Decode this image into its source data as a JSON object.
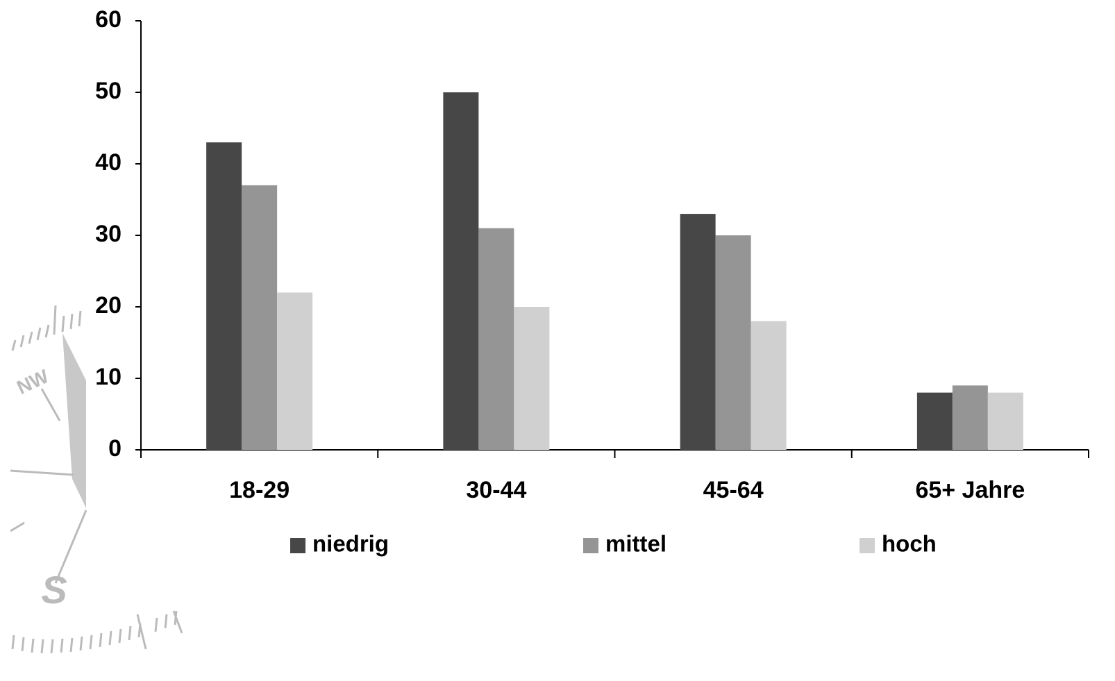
{
  "chart_data": {
    "type": "bar",
    "categories": [
      "18-29",
      "30-44",
      "45-64",
      "65+ Jahre"
    ],
    "series": [
      {
        "name": "niedrig",
        "color": "#474747",
        "values": [
          43,
          50,
          33,
          8
        ]
      },
      {
        "name": "mittel",
        "color": "#959595",
        "values": [
          37,
          31,
          30,
          9
        ]
      },
      {
        "name": "hoch",
        "color": "#d0d0d0",
        "values": [
          22,
          20,
          18,
          8
        ]
      }
    ],
    "ylim": [
      0,
      60
    ],
    "yticks": [
      0,
      10,
      20,
      30,
      40,
      50,
      60
    ],
    "grid": false,
    "legend": "bottom",
    "annotations": [
      "NW",
      "S"
    ]
  }
}
